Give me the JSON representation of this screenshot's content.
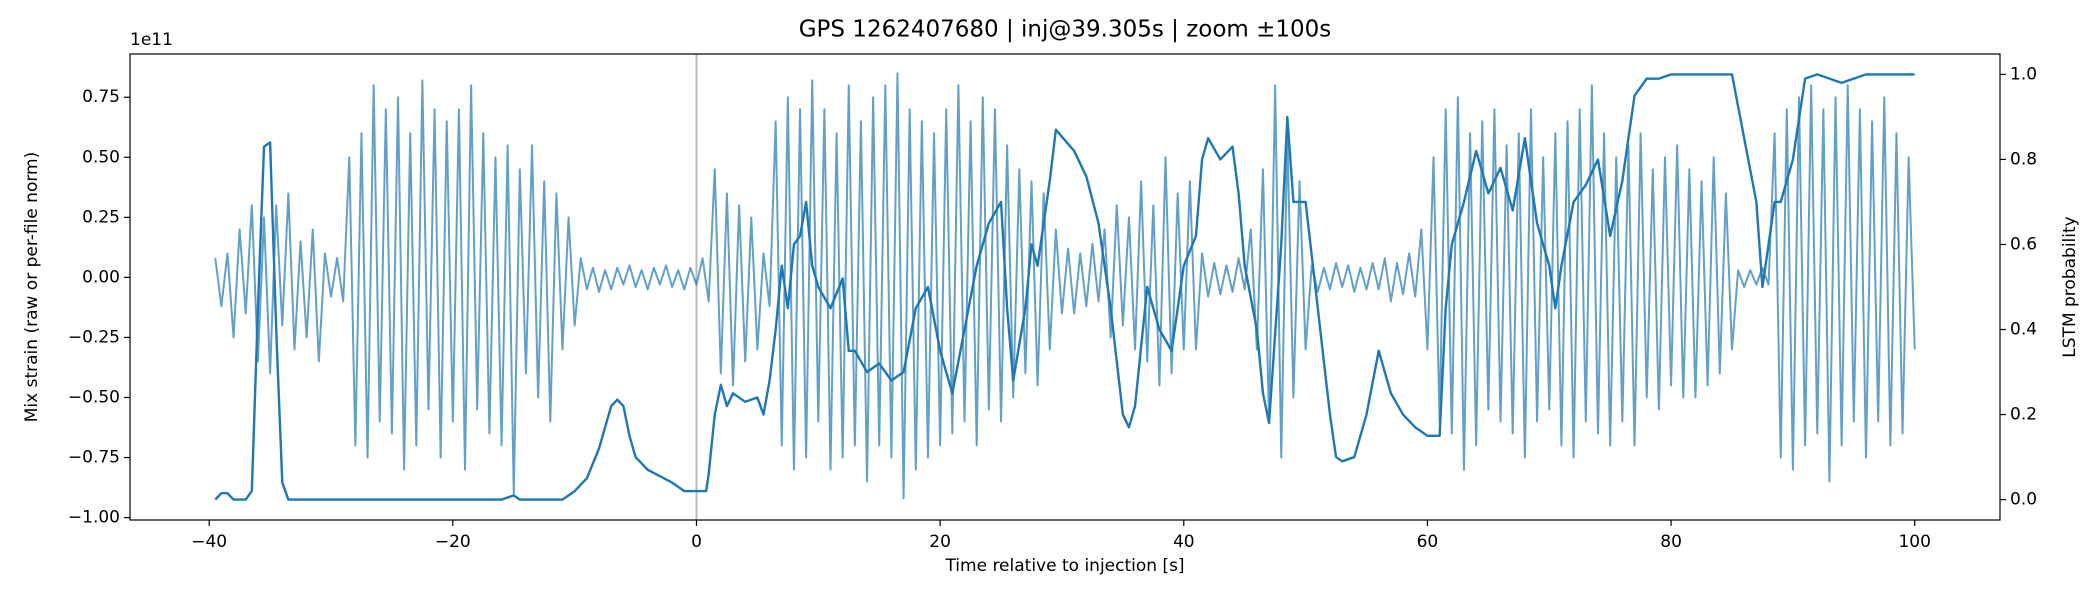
{
  "chart_data": {
    "type": "line",
    "title": "GPS 1262407680 | inj@39.305s | zoom ±100s",
    "xlabel": "Time relative to injection [s]",
    "ylabel": "Mix strain (raw or per-file norm)",
    "y2label": "LSTM probability",
    "y_offset_label": "1e11",
    "xlim": [
      -46.5,
      107
    ],
    "xticks": [
      {
        "value": -40,
        "label": "−40"
      },
      {
        "value": -20,
        "label": "−20"
      },
      0,
      20,
      40,
      60,
      80,
      100
    ],
    "ylim": [
      -1.01,
      0.93
    ],
    "yticks": [
      {
        "value": -1.0,
        "label": "−1.00"
      },
      {
        "value": -0.75,
        "label": "−0.75"
      },
      {
        "value": -0.5,
        "label": "−0.50"
      },
      {
        "value": -0.25,
        "label": "−0.25"
      },
      {
        "value": 0,
        "label": "0.00"
      },
      0.25,
      {
        "value": 0.5,
        "label": "0.50"
      },
      0.75
    ],
    "y2lim": [
      -0.048,
      1.048
    ],
    "y2ticks": [
      {
        "value": 0,
        "label": "0.0"
      },
      0.2,
      0.4,
      0.6,
      0.8,
      {
        "value": 1,
        "label": "1.0"
      }
    ],
    "vline_x": 0,
    "vline_color": "#bbbbbb",
    "series": [
      {
        "color": "#1f77b4",
        "opacity": 0.7,
        "axis": "y",
        "x": [
          -39.5,
          -39,
          -38.5,
          -38,
          -37.5,
          -37,
          -36.5,
          -36,
          -35.5,
          -35,
          -34.5,
          -34,
          -33.5,
          -33,
          -32.5,
          -32,
          -31.5,
          -31,
          -30.5,
          -30,
          -29.5,
          -29,
          -28.5,
          -28,
          -27.5,
          -27,
          -26.5,
          -26,
          -25.5,
          -25,
          -24.5,
          -24,
          -23.5,
          -23,
          -22.5,
          -22,
          -21.5,
          -21,
          -20.5,
          -20,
          -19.5,
          -19,
          -18.5,
          -18,
          -17.5,
          -17,
          -16.5,
          -16,
          -15.5,
          -15,
          -14.5,
          -14,
          -13.5,
          -13,
          -12.5,
          -12,
          -11.5,
          -11,
          -10.5,
          -10,
          -9.5,
          -9,
          -8.5,
          -8,
          -7.5,
          -7,
          -6.5,
          -6,
          -5.5,
          -5,
          -4.5,
          -4,
          -3.5,
          -3,
          -2.5,
          -2,
          -1.5,
          -1,
          -0.5,
          0,
          0.5,
          1,
          1.5,
          2,
          2.5,
          3,
          3.5,
          4,
          4.5,
          5,
          5.5,
          6,
          6.5,
          7,
          7.5,
          8,
          8.5,
          9,
          9.5,
          10,
          10.5,
          11,
          11.5,
          12,
          12.5,
          13,
          13.5,
          14,
          14.5,
          15,
          15.5,
          16,
          16.5,
          17,
          17.5,
          18,
          18.5,
          19,
          19.5,
          20,
          20.5,
          21,
          21.5,
          22,
          22.5,
          23,
          23.5,
          24,
          24.5,
          25,
          25.5,
          26,
          26.5,
          27,
          27.5,
          28,
          28.5,
          29,
          29.5,
          30,
          30.5,
          31,
          31.5,
          32,
          32.5,
          33,
          33.5,
          34,
          34.5,
          35,
          35.5,
          36,
          36.5,
          37,
          37.5,
          38,
          38.5,
          39,
          39.5,
          40,
          40.5,
          41,
          41.5,
          42,
          42.5,
          43,
          43.5,
          44,
          44.5,
          45,
          45.5,
          46,
          46.5,
          47,
          47.5,
          48,
          48.5,
          49,
          49.5,
          50,
          50.5,
          51,
          51.5,
          52,
          52.5,
          53,
          53.5,
          54,
          54.5,
          55,
          55.5,
          56,
          56.5,
          57,
          57.5,
          58,
          58.5,
          59,
          59.5,
          60,
          60.5,
          61,
          61.5,
          62,
          62.5,
          63,
          63.5,
          64,
          64.5,
          65,
          65.5,
          66,
          66.5,
          67,
          67.5,
          68,
          68.5,
          69,
          69.5,
          70,
          70.5,
          71,
          71.5,
          72,
          72.5,
          73,
          73.5,
          74,
          74.5,
          75,
          75.5,
          76,
          76.5,
          77,
          77.5,
          78,
          78.5,
          79,
          79.5,
          80,
          80.5,
          81,
          81.5,
          82,
          82.5,
          83,
          83.5,
          84,
          84.5,
          85,
          85.5,
          86,
          86.5,
          87,
          87.5,
          88,
          88.5,
          89,
          89.5,
          90,
          90.5,
          91,
          91.5,
          92,
          92.5,
          93,
          93.5,
          94,
          94.5,
          95,
          95.5,
          96,
          96.5,
          97,
          97.5,
          98,
          98.5,
          99,
          99.5,
          100
        ],
        "values": [
          0.08,
          -0.12,
          0.1,
          -0.25,
          0.2,
          -0.15,
          0.3,
          -0.35,
          0.25,
          -0.4,
          0.3,
          -0.2,
          0.35,
          -0.3,
          0.15,
          -0.25,
          0.2,
          -0.35,
          0.1,
          -0.08,
          0.08,
          -0.1,
          0.5,
          -0.7,
          0.6,
          -0.75,
          0.8,
          -0.6,
          0.7,
          -0.65,
          0.75,
          -0.8,
          0.6,
          -0.7,
          0.82,
          -0.55,
          0.7,
          -0.75,
          0.65,
          -0.6,
          0.7,
          -0.8,
          0.8,
          -0.55,
          0.6,
          -0.65,
          0.5,
          -0.7,
          0.55,
          -0.9,
          0.45,
          -0.4,
          0.55,
          -0.5,
          0.4,
          -0.6,
          0.35,
          -0.3,
          0.25,
          -0.2,
          0.08,
          -0.05,
          0.04,
          -0.06,
          0.03,
          -0.05,
          0.04,
          -0.03,
          0.05,
          -0.04,
          0.03,
          -0.05,
          0.04,
          -0.03,
          0.05,
          -0.04,
          0.03,
          -0.05,
          0.04,
          -0.03,
          0.08,
          -0.1,
          0.45,
          -0.4,
          0.35,
          -0.45,
          0.3,
          -0.35,
          0.25,
          -0.3,
          0.1,
          -0.12,
          0.65,
          -0.7,
          0.75,
          -0.8,
          0.7,
          -0.75,
          0.82,
          -0.6,
          0.7,
          -0.8,
          0.6,
          -0.75,
          0.8,
          -0.7,
          0.65,
          -0.85,
          0.75,
          -0.7,
          0.8,
          -0.75,
          0.85,
          -0.92,
          0.7,
          -0.8,
          0.65,
          -0.75,
          0.6,
          -0.7,
          0.7,
          -0.65,
          0.8,
          -0.6,
          0.65,
          -0.7,
          0.75,
          -0.55,
          0.7,
          -0.6,
          0.55,
          -0.5,
          0.45,
          -0.4,
          0.4,
          -0.45,
          0.35,
          -0.3,
          0.2,
          -0.15,
          0.12,
          -0.15,
          0.1,
          -0.12,
          0.14,
          -0.1,
          0.2,
          -0.25,
          0.3,
          -0.2,
          0.25,
          -0.3,
          0.4,
          -0.35,
          0.3,
          -0.45,
          0.5,
          -0.4,
          0.35,
          -0.3,
          0.4,
          -0.3,
          0.1,
          -0.08,
          0.06,
          -0.07,
          0.05,
          -0.06,
          0.08,
          -0.05,
          0.2,
          -0.3,
          0.45,
          -0.6,
          0.8,
          -0.75,
          0.6,
          -0.5,
          0.4,
          -0.3,
          0.05,
          -0.06,
          0.04,
          -0.05,
          0.06,
          -0.04,
          0.05,
          -0.06,
          0.04,
          -0.05,
          0.06,
          -0.05,
          0.08,
          -0.1,
          0.06,
          -0.07,
          0.1,
          -0.08,
          0.2,
          -0.3,
          0.5,
          -0.6,
          0.7,
          -0.65,
          0.75,
          -0.8,
          0.6,
          -0.7,
          0.65,
          -0.55,
          0.7,
          -0.6,
          0.55,
          -0.65,
          0.6,
          -0.75,
          0.7,
          -0.6,
          0.5,
          -0.55,
          0.6,
          -0.7,
          0.65,
          -0.75,
          0.7,
          -0.6,
          0.8,
          -0.65,
          0.6,
          -0.7,
          0.5,
          -0.6,
          0.55,
          -0.7,
          0.6,
          -0.5,
          0.45,
          -0.55,
          0.5,
          -0.45,
          0.55,
          -0.5,
          0.45,
          -0.5,
          0.4,
          -0.45,
          0.5,
          -0.4,
          0.35,
          -0.3,
          0.03,
          -0.04,
          0.03,
          -0.03,
          0.04,
          -0.03,
          0.6,
          -0.75,
          0.7,
          -0.8,
          0.75,
          -0.7,
          0.8,
          -0.65,
          0.7,
          -0.85,
          0.75,
          -0.7,
          0.8,
          -0.6,
          0.7,
          -0.75,
          0.65,
          -0.6,
          0.75,
          -0.7,
          0.6,
          -0.65,
          0.5,
          -0.3
        ]
      },
      {
        "color": "#1f77b4",
        "opacity": 1,
        "axis": "y2",
        "x": [
          -39.5,
          -39,
          -38.5,
          -38,
          -37,
          -36.5,
          -36,
          -35.5,
          -35,
          -34.5,
          -34,
          -33.5,
          -30,
          -20,
          -16,
          -15,
          -14.5,
          -11,
          -10,
          -9,
          -8,
          -7.5,
          -7,
          -6.5,
          -6,
          -5.5,
          -5,
          -4,
          -3,
          -2,
          -1,
          0,
          0.8,
          1,
          1.5,
          2,
          2.5,
          3,
          4,
          5,
          5.5,
          6,
          6.5,
          7,
          7.5,
          8,
          8.5,
          9,
          9.5,
          10,
          11,
          12,
          12.5,
          13,
          14,
          15,
          16,
          17,
          18,
          19,
          20,
          21,
          22,
          23,
          24,
          25,
          25.5,
          26,
          27,
          27.5,
          28,
          29,
          29.5,
          31,
          32,
          33,
          34,
          35,
          35.5,
          36,
          37,
          38,
          39,
          40,
          41,
          41.5,
          42,
          43,
          44,
          44.5,
          45,
          46,
          46.5,
          47,
          48,
          48.5,
          49,
          50,
          51,
          52,
          52.5,
          53,
          54,
          55,
          56,
          57,
          58,
          59,
          60,
          61,
          61.5,
          62,
          63,
          64,
          65,
          66,
          67,
          68,
          69,
          70,
          70.5,
          71,
          72,
          73,
          74,
          75,
          76,
          77,
          78,
          79,
          80,
          84,
          85,
          86,
          87,
          87.5,
          88,
          88.5,
          89,
          90,
          91,
          92,
          93,
          94,
          95,
          96,
          100
        ],
        "values": [
          0.0,
          0.015,
          0.015,
          0.0,
          0.0,
          0.02,
          0.45,
          0.83,
          0.84,
          0.4,
          0.04,
          0.0,
          0.0,
          0.0,
          0.0,
          0.01,
          0.0,
          0.0,
          0.02,
          0.05,
          0.12,
          0.17,
          0.22,
          0.235,
          0.22,
          0.15,
          0.1,
          0.07,
          0.055,
          0.04,
          0.02,
          0.02,
          0.02,
          0.06,
          0.2,
          0.27,
          0.22,
          0.25,
          0.23,
          0.24,
          0.2,
          0.28,
          0.4,
          0.55,
          0.45,
          0.6,
          0.62,
          0.7,
          0.55,
          0.5,
          0.45,
          0.52,
          0.35,
          0.35,
          0.3,
          0.32,
          0.28,
          0.3,
          0.45,
          0.5,
          0.35,
          0.25,
          0.4,
          0.55,
          0.65,
          0.7,
          0.45,
          0.28,
          0.45,
          0.6,
          0.55,
          0.75,
          0.87,
          0.82,
          0.76,
          0.65,
          0.45,
          0.2,
          0.17,
          0.22,
          0.5,
          0.4,
          0.35,
          0.55,
          0.62,
          0.8,
          0.85,
          0.8,
          0.83,
          0.72,
          0.55,
          0.4,
          0.25,
          0.18,
          0.6,
          0.9,
          0.7,
          0.7,
          0.45,
          0.2,
          0.1,
          0.09,
          0.1,
          0.2,
          0.35,
          0.25,
          0.2,
          0.17,
          0.15,
          0.15,
          0.45,
          0.6,
          0.7,
          0.82,
          0.72,
          0.78,
          0.68,
          0.85,
          0.65,
          0.55,
          0.45,
          0.55,
          0.7,
          0.74,
          0.8,
          0.62,
          0.75,
          0.95,
          0.99,
          0.99,
          1.0,
          1.0,
          1.0,
          0.85,
          0.7,
          0.5,
          0.6,
          0.7,
          0.7,
          0.8,
          0.99,
          1.0,
          0.99,
          0.98,
          0.99,
          1.0,
          1.0
        ]
      }
    ]
  }
}
